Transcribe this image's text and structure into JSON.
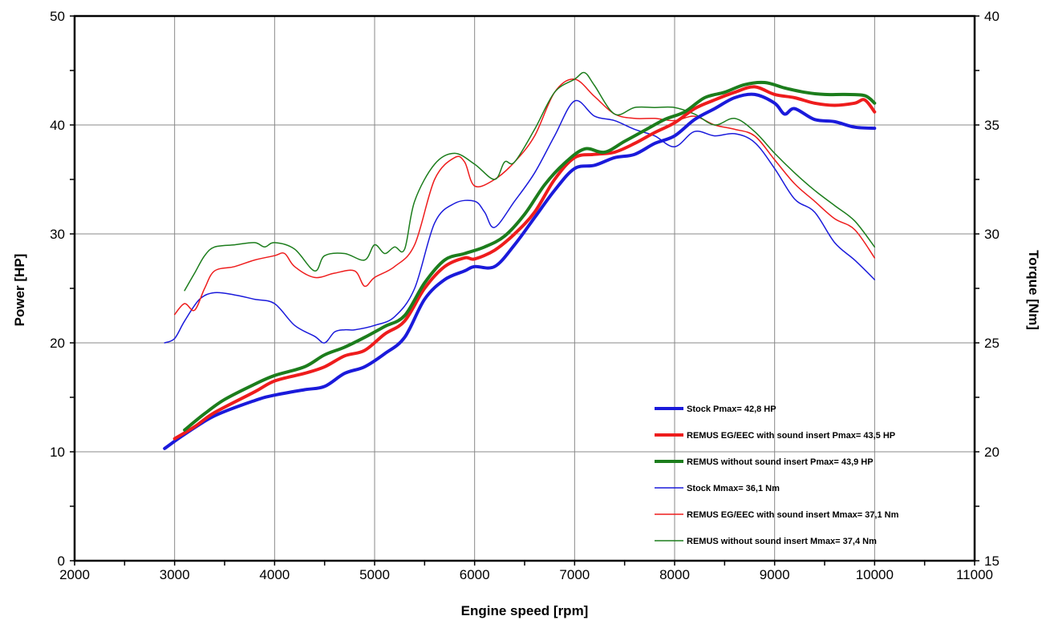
{
  "chart_data": {
    "type": "line",
    "xlabel": "Engine speed [rpm]",
    "ylabel": "Power [HP]",
    "y2label": "Torque [Nm]",
    "xlim": [
      2000,
      11000
    ],
    "ylim": [
      0,
      50
    ],
    "y2lim": [
      15,
      40
    ],
    "x_ticks": [
      2000,
      3000,
      4000,
      5000,
      6000,
      7000,
      8000,
      9000,
      10000,
      11000
    ],
    "y_ticks": [
      0,
      10,
      20,
      30,
      40,
      50
    ],
    "y2_ticks": [
      15,
      20,
      25,
      30,
      35,
      40
    ],
    "grid": true,
    "legend_position": "bottom-right",
    "series": [
      {
        "name": "Stock Pmax= 42,8 HP",
        "axis": "left",
        "color": "#1a1adb",
        "style": "thick",
        "x": [
          2900,
          3100,
          3400,
          3800,
          4000,
          4300,
          4500,
          4700,
          4900,
          5100,
          5300,
          5500,
          5700,
          5900,
          6000,
          6200,
          6400,
          6600,
          6800,
          7000,
          7200,
          7400,
          7600,
          7800,
          8000,
          8200,
          8400,
          8600,
          8800,
          9000,
          9100,
          9200,
          9400,
          9600,
          9800,
          10000
        ],
        "y": [
          10.3,
          11.6,
          13.3,
          14.7,
          15.2,
          15.7,
          16.0,
          17.2,
          17.8,
          19.0,
          20.5,
          24.0,
          25.8,
          26.6,
          27.0,
          27.0,
          29.0,
          31.5,
          34.0,
          36.0,
          36.3,
          37.0,
          37.3,
          38.3,
          39.0,
          40.5,
          41.5,
          42.5,
          42.8,
          42.0,
          41.0,
          41.5,
          40.5,
          40.3,
          39.8,
          39.7
        ]
      },
      {
        "name": "REMUS EG/EEC with sound insert Pmax=  43,5 HP",
        "axis": "left",
        "color": "#ee1c1c",
        "style": "thick",
        "x": [
          3000,
          3200,
          3400,
          3800,
          4000,
          4300,
          4500,
          4700,
          4900,
          5100,
          5300,
          5500,
          5700,
          5900,
          6000,
          6200,
          6400,
          6600,
          6800,
          7000,
          7200,
          7400,
          7600,
          7800,
          8000,
          8200,
          8400,
          8600,
          8800,
          9000,
          9200,
          9400,
          9600,
          9800,
          9900,
          10000
        ],
        "y": [
          11.2,
          12.3,
          13.6,
          15.5,
          16.5,
          17.2,
          17.8,
          18.8,
          19.3,
          20.8,
          22.0,
          25.0,
          27.0,
          27.8,
          27.7,
          28.5,
          30.0,
          32.0,
          35.0,
          37.0,
          37.3,
          37.5,
          38.3,
          39.3,
          40.2,
          41.5,
          42.3,
          43.0,
          43.5,
          42.8,
          42.5,
          42.0,
          41.8,
          42.0,
          42.3,
          41.2
        ]
      },
      {
        "name": "REMUS without sound insert Pmax= 43,9 HP",
        "axis": "left",
        "color": "#1c7d1c",
        "style": "thick",
        "x": [
          3100,
          3300,
          3500,
          3800,
          4000,
          4300,
          4500,
          4700,
          4900,
          5100,
          5300,
          5500,
          5700,
          5900,
          6100,
          6300,
          6500,
          6700,
          6900,
          7100,
          7300,
          7500,
          7700,
          7900,
          8100,
          8300,
          8500,
          8700,
          8900,
          9100,
          9300,
          9500,
          9700,
          9900,
          10000
        ],
        "y": [
          12.0,
          13.5,
          14.8,
          16.2,
          17.0,
          17.8,
          18.9,
          19.6,
          20.5,
          21.5,
          22.5,
          25.5,
          27.6,
          28.2,
          28.8,
          29.8,
          31.8,
          34.5,
          36.5,
          37.8,
          37.5,
          38.5,
          39.5,
          40.5,
          41.2,
          42.5,
          43.0,
          43.7,
          43.9,
          43.4,
          43.0,
          42.8,
          42.8,
          42.7,
          42.0
        ]
      },
      {
        "name": "Stock Mmax= 36,1 Nm",
        "axis": "right",
        "color": "#1a1adb",
        "style": "thin",
        "x": [
          2900,
          3000,
          3100,
          3250,
          3400,
          3600,
          3800,
          4000,
          4200,
          4400,
          4500,
          4600,
          4700,
          4800,
          5000,
          5200,
          5400,
          5600,
          5800,
          6000,
          6100,
          6200,
          6400,
          6600,
          6800,
          7000,
          7200,
          7400,
          7600,
          7800,
          8000,
          8200,
          8400,
          8600,
          8800,
          9000,
          9200,
          9400,
          9600,
          9800,
          10000
        ],
        "y": [
          25.0,
          25.2,
          26.0,
          27.0,
          27.3,
          27.2,
          27.0,
          26.8,
          25.8,
          25.3,
          25.0,
          25.5,
          25.6,
          25.6,
          25.8,
          26.2,
          27.5,
          30.5,
          31.4,
          31.5,
          31.0,
          30.3,
          31.5,
          32.8,
          34.5,
          36.1,
          35.4,
          35.2,
          34.8,
          34.5,
          34.0,
          34.7,
          34.5,
          34.6,
          34.2,
          33.0,
          31.6,
          31.0,
          29.6,
          28.8,
          27.9
        ]
      },
      {
        "name": "REMUS EG/EEC with sound insert Mmax= 37,1 Nm",
        "axis": "right",
        "color": "#ee1c1c",
        "style": "thin",
        "x": [
          3000,
          3100,
          3200,
          3300,
          3400,
          3600,
          3800,
          4000,
          4100,
          4200,
          4400,
          4600,
          4800,
          4900,
          5000,
          5200,
          5400,
          5600,
          5800,
          5900,
          6000,
          6200,
          6400,
          6600,
          6800,
          7000,
          7200,
          7400,
          7600,
          7800,
          8000,
          8200,
          8400,
          8600,
          8800,
          9000,
          9200,
          9400,
          9600,
          9800,
          10000
        ],
        "y": [
          26.3,
          26.8,
          26.5,
          27.5,
          28.3,
          28.5,
          28.8,
          29.0,
          29.1,
          28.5,
          28.0,
          28.2,
          28.3,
          27.6,
          28.0,
          28.5,
          29.5,
          32.5,
          33.5,
          33.3,
          32.2,
          32.5,
          33.3,
          34.5,
          36.5,
          37.1,
          36.3,
          35.5,
          35.3,
          35.3,
          35.2,
          35.4,
          35.0,
          34.8,
          34.5,
          33.4,
          32.3,
          31.5,
          30.7,
          30.2,
          28.9
        ]
      },
      {
        "name": "REMUS without sound insert Mmax= 37,4 Nm",
        "axis": "right",
        "color": "#1c7d1c",
        "style": "thin",
        "x": [
          3100,
          3200,
          3300,
          3400,
          3600,
          3800,
          3900,
          4000,
          4200,
          4400,
          4500,
          4700,
          4900,
          5000,
          5100,
          5200,
          5300,
          5400,
          5600,
          5800,
          6000,
          6200,
          6300,
          6400,
          6600,
          6800,
          7000,
          7100,
          7200,
          7400,
          7600,
          7800,
          8000,
          8200,
          8400,
          8600,
          8800,
          9000,
          9200,
          9400,
          9600,
          9800,
          10000
        ],
        "y": [
          27.4,
          28.2,
          29.0,
          29.4,
          29.5,
          29.6,
          29.4,
          29.6,
          29.3,
          28.3,
          29.0,
          29.1,
          28.8,
          29.5,
          29.1,
          29.4,
          29.3,
          31.5,
          33.2,
          33.7,
          33.2,
          32.5,
          33.3,
          33.3,
          34.8,
          36.5,
          37.1,
          37.4,
          36.8,
          35.5,
          35.8,
          35.8,
          35.8,
          35.5,
          35.0,
          35.3,
          34.7,
          33.7,
          32.8,
          32.0,
          31.3,
          30.6,
          29.4
        ]
      }
    ]
  }
}
